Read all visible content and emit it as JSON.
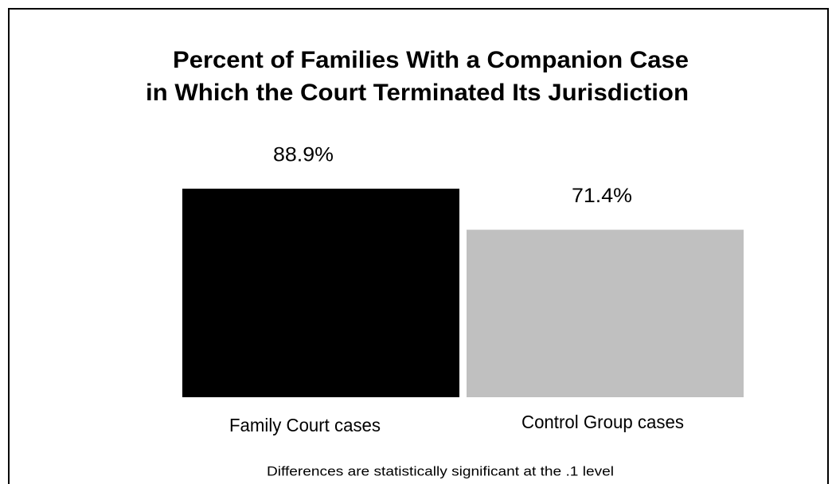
{
  "chart_data": {
    "type": "bar",
    "title": [
      "Percent of Families With a Companion Case",
      "in Which the Court Terminated Its Jurisdiction"
    ],
    "categories": [
      "Family Court cases",
      "Control Group cases"
    ],
    "values": [
      88.9,
      71.4
    ],
    "value_labels": [
      "88.9%",
      "71.4%"
    ],
    "colors": [
      "#000000",
      "#c0c0c0"
    ],
    "note": "Differences are statistically significant at the .1 level"
  }
}
